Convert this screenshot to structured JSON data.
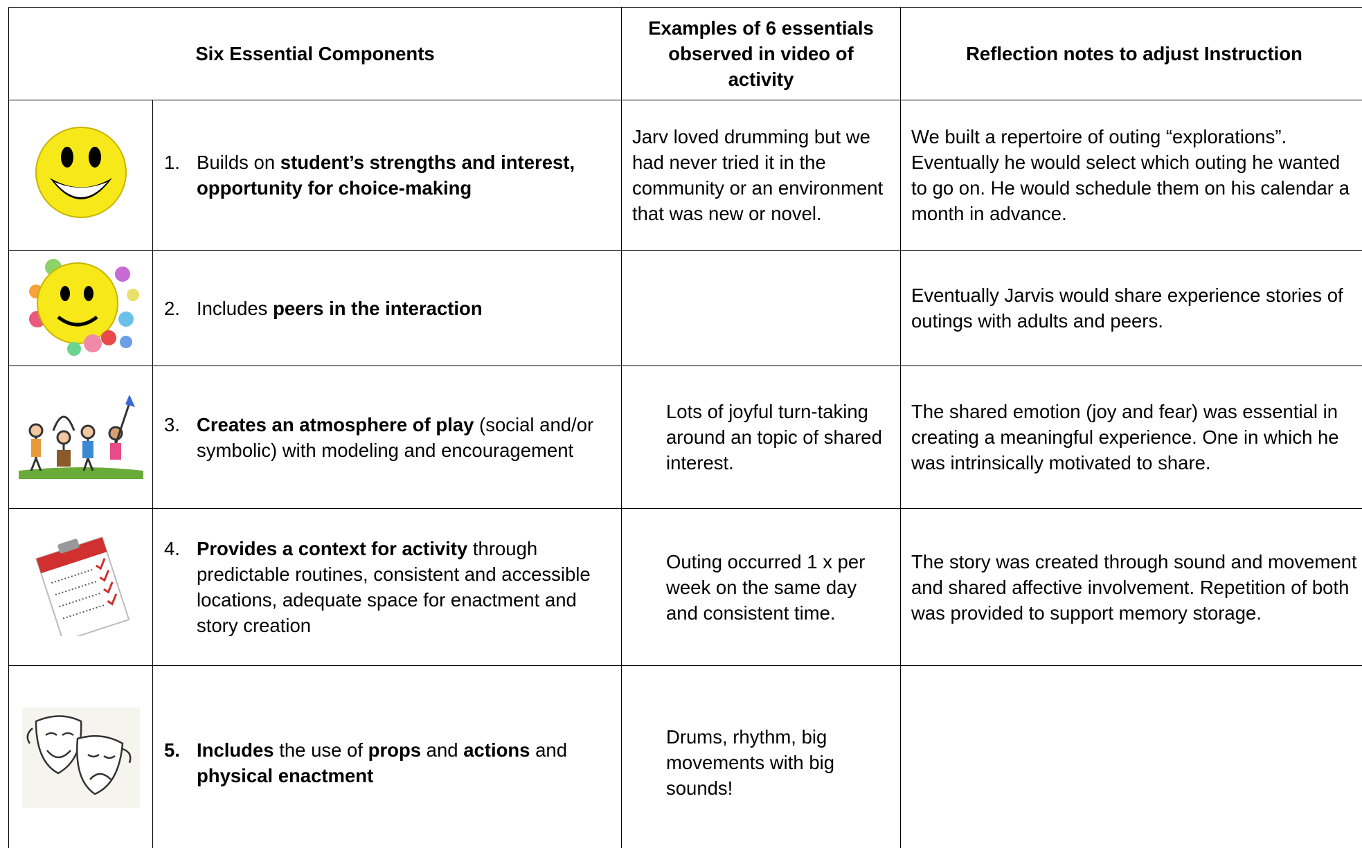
{
  "table": {
    "header": [
      "Six Essential Components",
      "Examples of 6 essentials observed in video of activity",
      "Reflection notes to adjust Instruction"
    ],
    "rows": [
      {
        "component": {
          "number": "1.",
          "parts": [
            {
              "text": "Builds on ",
              "bold": false
            },
            {
              "text": "student’s strengths and interest, opportunity for choice-making",
              "bold": true
            }
          ]
        },
        "example": "Jarv loved drumming but we had never tried it in the community or an environment that was new or novel.",
        "reflection": "We built a repertoire of outing “explorations”. Eventually he would select which outing he wanted to go on. He would schedule them on his calendar a month in advance."
      },
      {
        "component": {
          "number": "2.",
          "parts": [
            {
              "text": "Includes ",
              "bold": false
            },
            {
              "text": "peers in the interaction",
              "bold": true
            }
          ]
        },
        "reflection": "Eventually Jarvis would share experience stories of outings with adults and peers."
      },
      {
        "component": {
          "number": "3.",
          "parts": [
            {
              "text": "Creates an atmosphere of play",
              "bold": true
            },
            {
              "text": " (social and/or symbolic) with modeling and encouragement",
              "bold": false
            }
          ]
        },
        "example": "Lots of joyful turn-taking around an topic of shared interest.",
        "reflection": "The shared emotion (joy and fear) was essential in creating a meaningful experience. One in which he was intrinsically motivated to share."
      },
      {
        "component": {
          "number": "4.",
          "parts": [
            {
              "text": "Provides a context for activity",
              "bold": true
            },
            {
              "text": " through predictable routines, consistent and accessible locations, adequate space for enactment and story creation",
              "bold": false
            }
          ]
        },
        "example": "Outing occurred 1 x per week on the same day and consistent time.",
        "reflection": "The story was created through sound and movement and shared affective involvement. Repetition of both was provided to support memory storage."
      },
      {
        "component": {
          "number": "5.",
          "number_bold": true,
          "parts": [
            {
              "text": "Includes",
              "bold": true
            },
            {
              "text": " the use of ",
              "bold": false
            },
            {
              "text": "props",
              "bold": true
            },
            {
              "text": " and ",
              "bold": false
            },
            {
              "text": "actions",
              "bold": true
            },
            {
              "text": " and ",
              "bold": false
            },
            {
              "text": "physical enactment",
              "bold": true
            }
          ]
        },
        "example": "Drums, rhythm, big movements with big sounds!"
      }
    ]
  }
}
